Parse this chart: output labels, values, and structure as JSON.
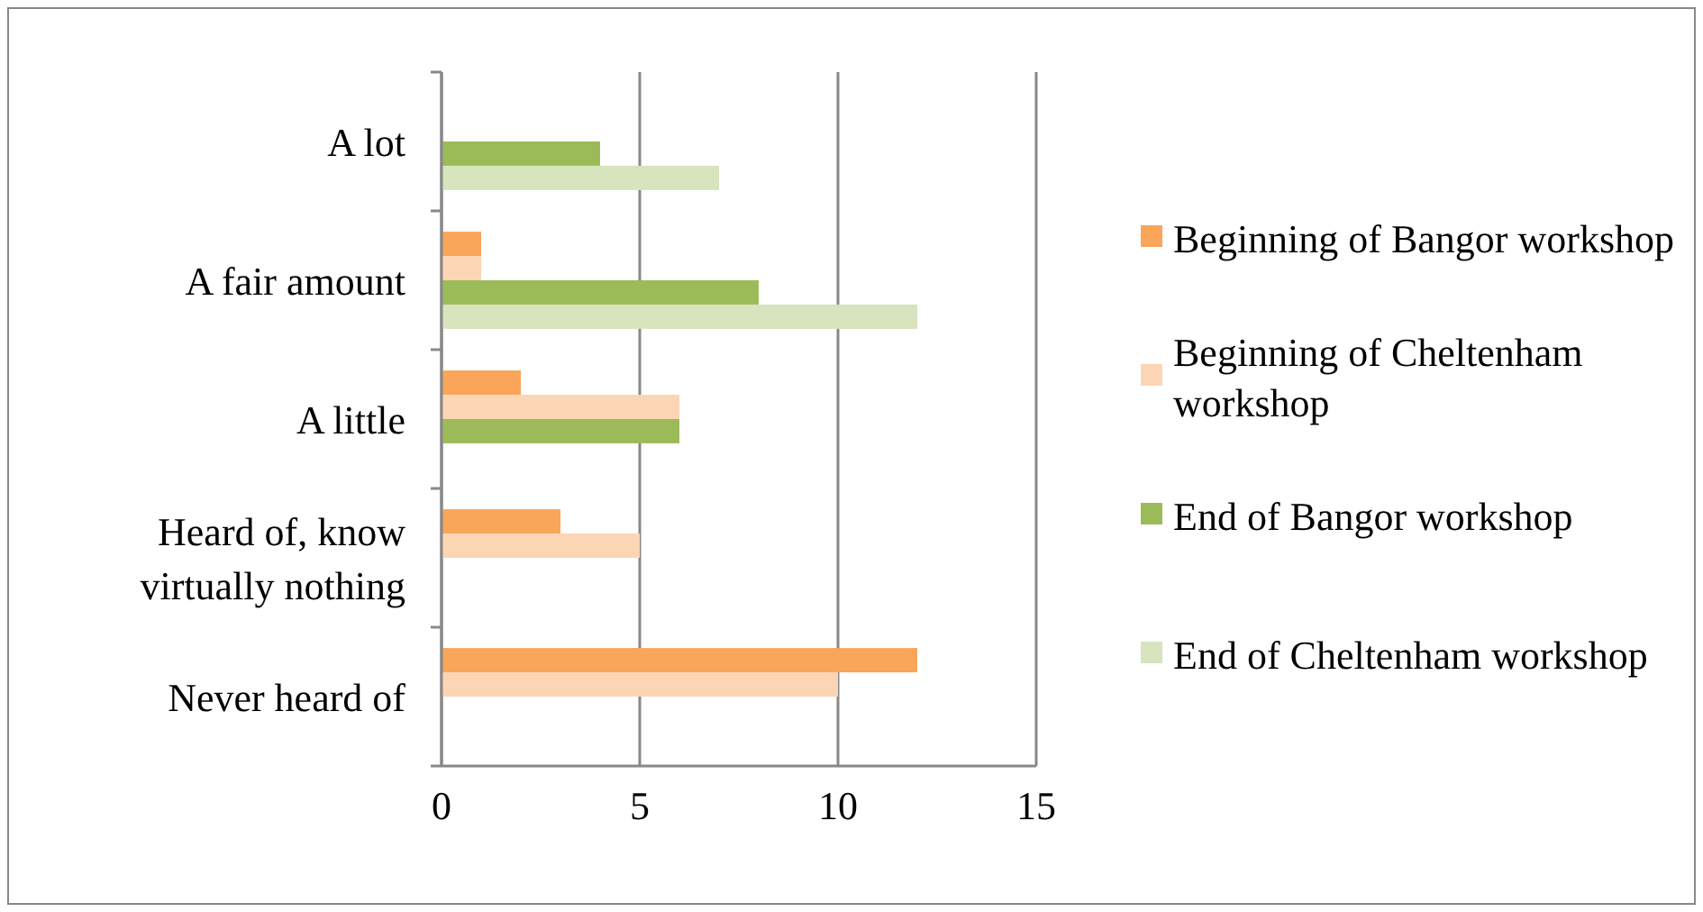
{
  "chart_data": {
    "type": "bar",
    "orientation": "horizontal",
    "categories": [
      "A lot",
      "A fair amount",
      "A little",
      "Heard of, know virtually nothing",
      "Never heard of"
    ],
    "series": [
      {
        "name": "Beginning of Bangor workshop",
        "color": "#f9a55a",
        "values": [
          0,
          1,
          2,
          3,
          12
        ]
      },
      {
        "name": "Beginning of Cheltenham workshop",
        "color": "#fcd5b5",
        "values": [
          0,
          1,
          6,
          5,
          10
        ]
      },
      {
        "name": "End of Bangor workshop",
        "color": "#9bbb59",
        "values": [
          4,
          8,
          6,
          0,
          0
        ]
      },
      {
        "name": "End of Cheltenham workshop",
        "color": "#d7e4bd",
        "values": [
          7,
          12,
          0,
          0,
          0
        ]
      }
    ],
    "xlim": [
      0,
      15
    ],
    "xticks": [
      0,
      5,
      10,
      15
    ],
    "grid": "x",
    "legend": "right"
  }
}
